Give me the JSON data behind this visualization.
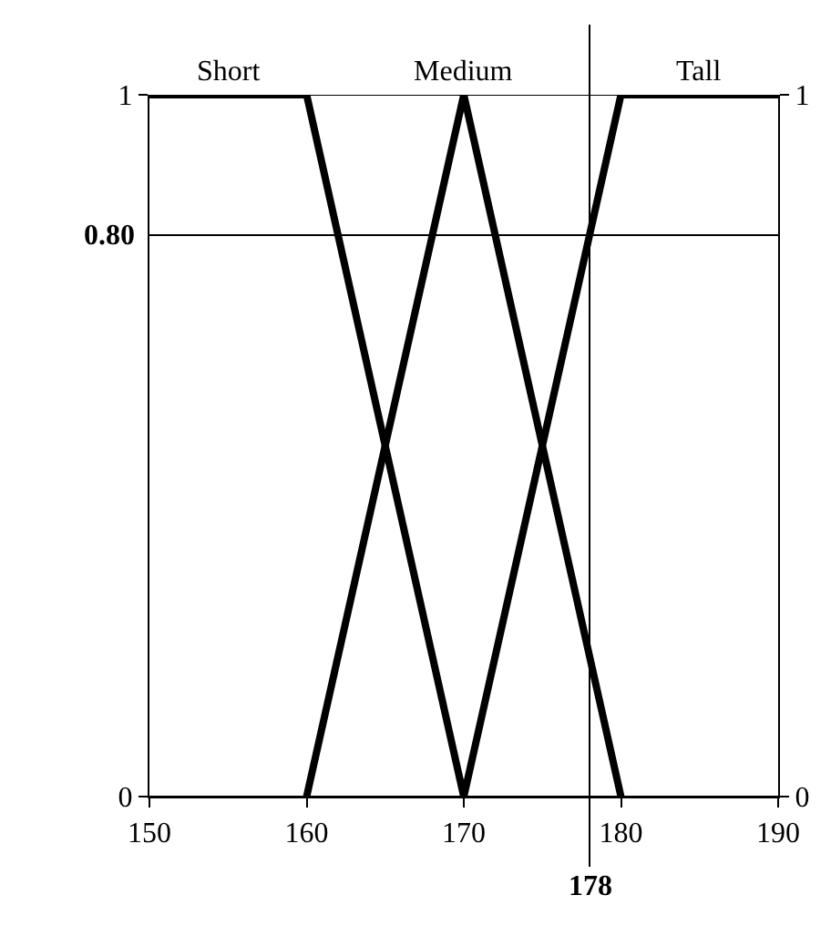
{
  "chart_data": {
    "type": "line",
    "xlim": [
      150,
      190
    ],
    "xticks": [
      150,
      160,
      170,
      180,
      190
    ],
    "ylim": [
      0,
      1
    ],
    "yticks": [
      0,
      1
    ],
    "y2lim": [
      0,
      1
    ],
    "y2ticks": [
      0,
      1
    ],
    "grid": "y",
    "legend": false,
    "marker": "none",
    "line_style": "solid",
    "series": [
      {
        "name": "Short",
        "color": "#000000",
        "x": [
          150,
          160,
          170
        ],
        "values": [
          1,
          1,
          0
        ]
      },
      {
        "name": "Medium",
        "color": "#000000",
        "x": [
          160,
          170,
          180
        ],
        "values": [
          0,
          1,
          0
        ]
      },
      {
        "name": "Tall",
        "color": "#000000",
        "x": [
          170,
          180,
          190
        ],
        "values": [
          0,
          1,
          1
        ]
      }
    ],
    "ref_lines": [
      {
        "axis": "y",
        "value": 0.8,
        "label": "0.80",
        "color": "#000000"
      },
      {
        "axis": "x",
        "value": 178,
        "label": "178",
        "color": "#000000"
      }
    ]
  }
}
